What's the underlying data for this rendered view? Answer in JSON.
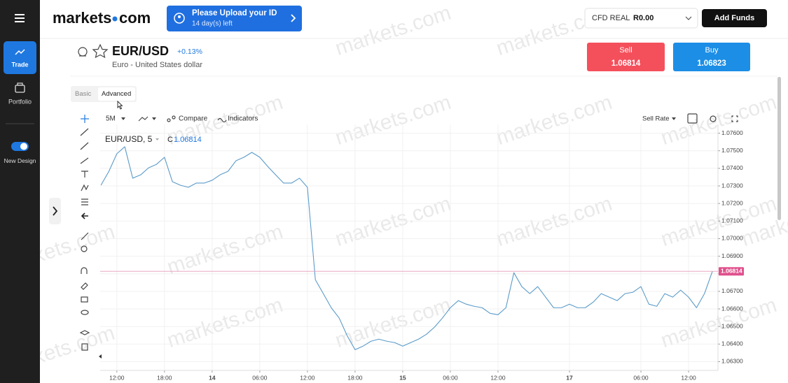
{
  "sidebar": {
    "items": [
      "Trade",
      "Portfolio",
      "New Design"
    ]
  },
  "header": {
    "logo": {
      "left": "markets",
      "right": "com"
    },
    "banner": {
      "title": "Please Upload your ID",
      "subtitle": "14 day(s) left"
    },
    "account": {
      "type": "CFD REAL",
      "balance": "R0.00"
    },
    "add_funds": "Add Funds"
  },
  "instrument": {
    "symbol": "EUR/USD",
    "change": "+0.13%",
    "description": "Euro - United States dollar"
  },
  "sell": {
    "label": "Sell",
    "price": "1.06814"
  },
  "buy": {
    "label": "Buy",
    "price": "1.06823"
  },
  "tabs": [
    "Basic",
    "Advanced"
  ],
  "toolbar": {
    "interval": "5M",
    "compare": "Compare",
    "indicators": "Indicators",
    "rate": "Sell Rate"
  },
  "watermark": "markets.com",
  "chart_data": {
    "type": "line",
    "close_label": "C",
    "last_price": 1.06814,
    "series": [
      {
        "name": "EUR/USD, 5",
        "color": "#5b9bc9",
        "values": [
          1.07304,
          1.07383,
          1.07483,
          1.07523,
          1.07344,
          1.07363,
          1.07403,
          1.07423,
          1.07463,
          1.07324,
          1.07304,
          1.07292,
          1.07316,
          1.07316,
          1.07332,
          1.07363,
          1.07383,
          1.07443,
          1.07463,
          1.07491,
          1.07463,
          1.07411,
          1.07363,
          1.07316,
          1.07316,
          1.07344,
          1.07292,
          1.06766,
          1.06687,
          1.06607,
          1.06548,
          1.06448,
          1.06368,
          1.06388,
          1.06416,
          1.06428,
          1.06416,
          1.06408,
          1.06388,
          1.06408,
          1.06428,
          1.06456,
          1.06496,
          1.06548,
          1.06607,
          1.06647,
          1.06627,
          1.06615,
          1.06607,
          1.06575,
          1.06567,
          1.06607,
          1.06806,
          1.06727,
          1.06687,
          1.06727,
          1.06667,
          1.06607,
          1.06607,
          1.06627,
          1.06607,
          1.06607,
          1.06639,
          1.06687,
          1.06667,
          1.06647,
          1.06687,
          1.06695,
          1.06727,
          1.06627,
          1.06615,
          1.06687,
          1.06667,
          1.06707,
          1.06667,
          1.06607,
          1.06687,
          1.06814
        ]
      }
    ],
    "x": [
      -2,
      -1,
      0,
      1,
      2,
      3,
      4,
      5,
      6,
      7,
      8,
      9,
      10,
      11,
      12,
      13,
      14,
      15,
      16,
      17,
      18,
      19,
      20,
      21,
      22,
      23,
      24,
      25,
      26,
      27,
      28,
      29,
      30,
      31,
      32,
      33,
      34,
      35,
      36,
      37,
      38,
      39,
      40,
      41,
      42,
      43,
      44,
      45,
      46,
      47,
      48,
      49,
      50,
      51,
      52,
      53,
      54,
      55,
      56,
      57,
      58,
      59,
      60,
      61,
      62,
      63,
      64,
      65,
      66,
      67,
      68,
      69,
      70,
      71,
      72,
      73,
      74,
      75
    ],
    "xlim": [
      -2.1,
      75.7
    ],
    "xticks": [
      {
        "value": 0,
        "label": "12:00"
      },
      {
        "value": 6,
        "label": "18:00"
      },
      {
        "value": 12,
        "label": "14"
      },
      {
        "value": 18,
        "label": "06:00"
      },
      {
        "value": 24,
        "label": "12:00"
      },
      {
        "value": 30,
        "label": "18:00"
      },
      {
        "value": 36,
        "label": "15"
      },
      {
        "value": 42,
        "label": "06:00"
      },
      {
        "value": 48,
        "label": "12:00"
      },
      {
        "value": 57,
        "label": "17"
      },
      {
        "value": 66,
        "label": "06:00"
      },
      {
        "value": 72,
        "label": "12:00"
      }
    ],
    "ylim": [
      1.0625,
      1.0765
    ],
    "yticks": [
      {
        "value": 1.076,
        "label": "1.07600"
      },
      {
        "value": 1.075,
        "label": "1.07500"
      },
      {
        "value": 1.074,
        "label": "1.07400"
      },
      {
        "value": 1.073,
        "label": "1.07300"
      },
      {
        "value": 1.072,
        "label": "1.07200"
      },
      {
        "value": 1.071,
        "label": "1.07100"
      },
      {
        "value": 1.07,
        "label": "1.07000"
      },
      {
        "value": 1.069,
        "label": "1.06900"
      },
      {
        "value": 1.068,
        "label": "1.06800"
      },
      {
        "value": 1.067,
        "label": "1.06700"
      },
      {
        "value": 1.066,
        "label": "1.06600"
      },
      {
        "value": 1.065,
        "label": "1.06500"
      },
      {
        "value": 1.064,
        "label": "1.06400"
      },
      {
        "value": 1.063,
        "label": "1.06300"
      }
    ],
    "grid": true
  }
}
